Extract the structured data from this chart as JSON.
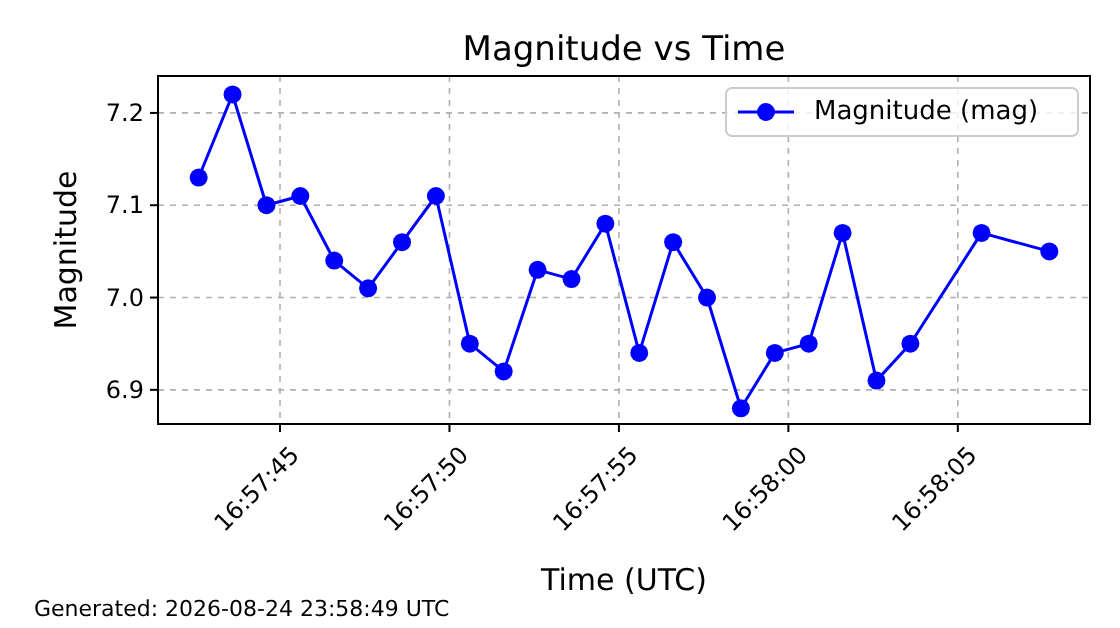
{
  "chart_data": {
    "type": "line",
    "title": "Magnitude vs Time",
    "xlabel": "Time (UTC)",
    "ylabel": "Magnitude",
    "x": [
      "2026-08-24T16:57:42.6",
      "2026-08-24T16:57:43.6",
      "2026-08-24T16:57:44.6",
      "2026-08-24T16:57:45.6",
      "2026-08-24T16:57:46.6",
      "2026-08-24T16:57:47.6",
      "2026-08-24T16:57:48.6",
      "2026-08-24T16:57:49.6",
      "2026-08-24T16:57:50.6",
      "2026-08-24T16:57:51.6",
      "2026-08-24T16:57:52.6",
      "2026-08-24T16:57:53.6",
      "2026-08-24T16:57:54.6",
      "2026-08-24T16:57:55.6",
      "2026-08-24T16:57:56.6",
      "2026-08-24T16:57:57.6",
      "2026-08-24T16:57:58.6",
      "2026-08-24T16:57:59.6",
      "2026-08-24T16:58:00.6",
      "2026-08-24T16:58:01.6",
      "2026-08-24T16:58:02.6",
      "2026-08-24T16:58:03.6",
      "2026-08-24T16:58:05.7",
      "2026-08-24T16:58:07.7"
    ],
    "series": [
      {
        "name": "Magnitude (mag)",
        "color": "#0000ff",
        "values": [
          7.13,
          7.22,
          7.1,
          7.11,
          7.04,
          7.01,
          7.06,
          7.11,
          6.95,
          6.92,
          7.03,
          7.02,
          7.08,
          6.94,
          7.06,
          7.0,
          6.88,
          6.94,
          6.95,
          7.07,
          6.91,
          6.95,
          7.07,
          7.05
        ]
      }
    ],
    "xlim": [
      "2026-08-24T16:57:41.4",
      "2026-08-24T16:58:08.9"
    ],
    "xticks": [
      {
        "value": "2026-08-24T16:57:45",
        "label": "16:57:45"
      },
      {
        "value": "2026-08-24T16:57:50",
        "label": "16:57:50"
      },
      {
        "value": "2026-08-24T16:57:55",
        "label": "16:57:55"
      },
      {
        "value": "2026-08-24T16:58:00",
        "label": "16:58:00"
      },
      {
        "value": "2026-08-24T16:58:05",
        "label": "16:58:05"
      }
    ],
    "ylim": [
      6.863,
      7.24
    ],
    "yticks": [
      {
        "value": 6.9,
        "label": "6.9"
      },
      {
        "value": 7.0,
        "label": "7.0"
      },
      {
        "value": 7.1,
        "label": "7.1"
      },
      {
        "value": 7.2,
        "label": "7.2"
      }
    ],
    "grid": true,
    "legend": "top right",
    "marker": "circle",
    "line_style": "solid",
    "annotations": [
      "Generated: 2026-08-24 23:58:49 UTC"
    ]
  }
}
